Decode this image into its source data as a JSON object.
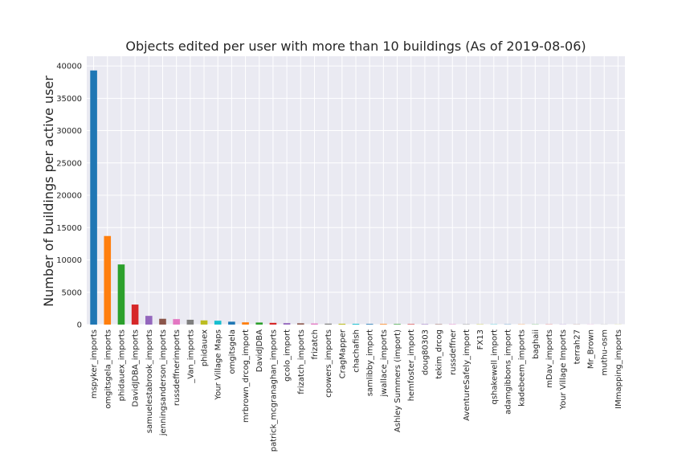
{
  "chart_data": {
    "type": "bar",
    "title": "Objects edited per user with more than 10 buildings (As of 2019-08-06)",
    "xlabel": "",
    "ylabel": "Number of buildings per active user",
    "ylim": [
      0,
      41500
    ],
    "yticks": [
      0,
      5000,
      10000,
      15000,
      20000,
      25000,
      30000,
      35000,
      40000
    ],
    "grid": true,
    "categories": [
      "mspyker_imports",
      "omgitsgela_imports",
      "phidauex_imports",
      "DavidJDBA_imports",
      "samuelestabrook_imports",
      "jenningsanderson_imports",
      "russdeffnerimports",
      "_Van_imports",
      "phidauex",
      "Your Village Maps",
      "omgitsgela",
      "mrbrown_drcog_import",
      "DavidJDBA",
      "patrick_mcgranaghan_imports",
      "gcolo_import",
      "frizatch_imports",
      "frizatch",
      "cpowers_imports",
      "CragMapper",
      "chachafish",
      "samlibby_import",
      "jwallace_imports",
      "Ashley Summers (import)",
      "hemfoster_import",
      "doug80303",
      "tekim_drcog",
      "russdeffner",
      "AventureSafely_import",
      "FX13",
      "qshakewell_import",
      "adamgibbons_import",
      "kadebeem_imports",
      "baghaii",
      "mDav_imports",
      "Your Village Imports",
      "terrah27",
      "Mr_Brown",
      "muthu-osm",
      "IMmapping_imports"
    ],
    "values": [
      39300,
      13700,
      9300,
      3100,
      1350,
      900,
      850,
      750,
      650,
      600,
      450,
      350,
      320,
      270,
      230,
      200,
      170,
      150,
      130,
      120,
      100,
      90,
      80,
      70,
      60,
      55,
      50,
      45,
      40,
      38,
      35,
      32,
      30,
      28,
      25,
      22,
      20,
      18,
      15
    ],
    "colors": [
      "#1f77b4",
      "#ff7f0e",
      "#2ca02c",
      "#d62728",
      "#9467bd",
      "#8c564b",
      "#e377c2",
      "#7f7f7f",
      "#bcbd22",
      "#17becf"
    ],
    "style": {
      "plot_background": "#eaeaf2",
      "grid_color": "#ffffff",
      "text_color": "#262626"
    }
  }
}
